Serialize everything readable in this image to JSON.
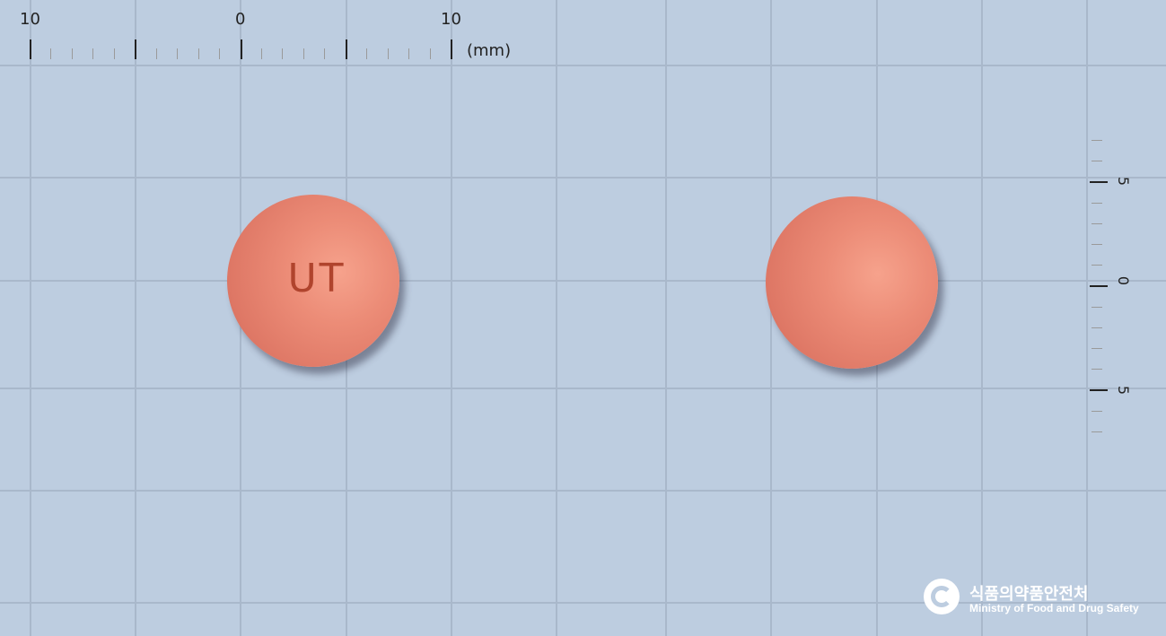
{
  "ruler_top": {
    "labels": [
      "10",
      "0",
      "10"
    ],
    "unit": "(mm)"
  },
  "ruler_side": {
    "labels": [
      "5",
      "0",
      "5"
    ]
  },
  "tablets": [
    {
      "name": "tablet-front",
      "imprint": "UT",
      "color": "#e8806b"
    },
    {
      "name": "tablet-back",
      "imprint": "",
      "color": "#e8806b"
    }
  ],
  "watermark": {
    "korean": "식품의약품안전처",
    "english": "Ministry of Food and Drug Safety",
    "icon": "government-emblem-icon"
  },
  "colors": {
    "background": "#bdcde0",
    "grid": "#a9b8cb"
  }
}
